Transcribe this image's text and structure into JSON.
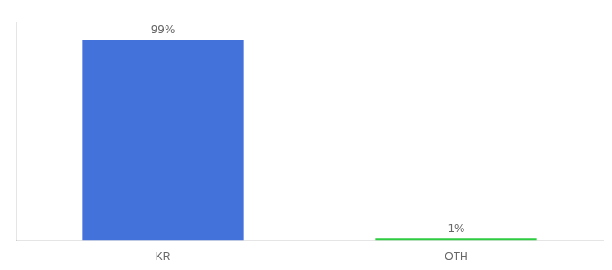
{
  "chart_data": {
    "type": "bar",
    "categories": [
      "KR",
      "OTH"
    ],
    "values": [
      99,
      1
    ],
    "value_labels": [
      "99%",
      "1%"
    ],
    "colors": [
      "#4472db",
      "#2ecc40"
    ],
    "ylim": [
      0,
      108
    ],
    "grid": false,
    "data_labels": true,
    "tick_labels": "x"
  }
}
